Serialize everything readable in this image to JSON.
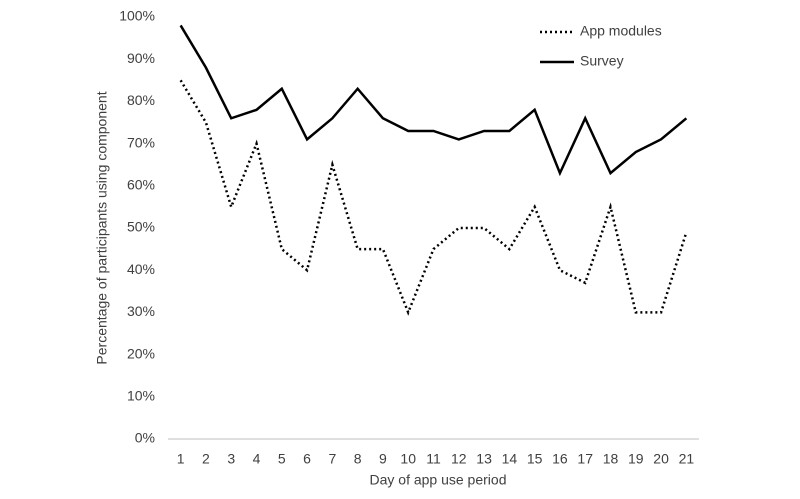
{
  "chart_data": {
    "type": "line",
    "x_label": "Day of app use period",
    "y_label": "Percentage of participants using component",
    "categories": [
      1,
      2,
      3,
      4,
      5,
      6,
      7,
      8,
      9,
      10,
      11,
      12,
      13,
      14,
      15,
      16,
      17,
      18,
      19,
      20,
      21
    ],
    "series": [
      {
        "name": "App modules",
        "color": "#000000",
        "line_style": "dotted",
        "values": [
          85,
          75,
          55,
          70,
          45,
          40,
          65,
          45,
          45,
          30,
          45,
          50,
          50,
          45,
          55,
          40,
          37,
          55,
          30,
          30,
          49
        ]
      },
      {
        "name": "Survey",
        "color": "#000000",
        "line_style": "solid",
        "values": [
          98,
          88,
          76,
          78,
          83,
          71,
          76,
          83,
          76,
          73,
          73,
          71,
          73,
          73,
          78,
          63,
          76,
          63,
          68,
          71,
          76
        ]
      }
    ],
    "ylim": [
      0,
      100
    ],
    "yticks": [
      {
        "value": 0,
        "label": "0%"
      },
      {
        "value": 10,
        "label": "10%"
      },
      {
        "value": 20,
        "label": "20%"
      },
      {
        "value": 30,
        "label": "30%"
      },
      {
        "value": 40,
        "label": "40%"
      },
      {
        "value": 50,
        "label": "50%"
      },
      {
        "value": 60,
        "label": "60%"
      },
      {
        "value": 70,
        "label": "70%"
      },
      {
        "value": 80,
        "label": "80%"
      },
      {
        "value": 90,
        "label": "90%"
      },
      {
        "value": 100,
        "label": "100%"
      }
    ],
    "grid": false,
    "legend": "top-right"
  }
}
